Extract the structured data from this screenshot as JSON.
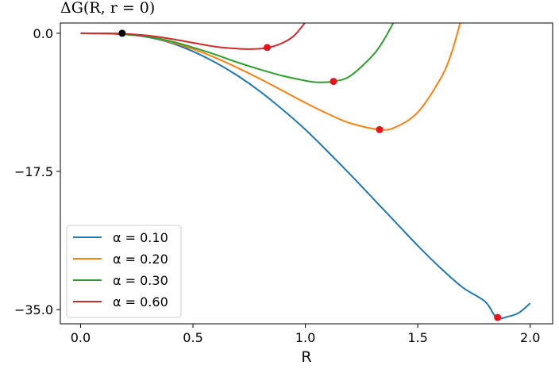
{
  "chart_data": {
    "type": "line",
    "title": "ΔG(R, r = 0)",
    "xlabel": "R",
    "ylabel": "",
    "xlim": [
      -0.09,
      2.1
    ],
    "ylim": [
      -36.8,
      1.3
    ],
    "xticks": [
      0.0,
      0.5,
      1.0,
      1.5,
      2.0
    ],
    "xtick_labels": [
      "0.0",
      "0.5",
      "1.0",
      "1.5",
      "2.0"
    ],
    "yticks": [
      0.0,
      -17.5,
      -35.0
    ],
    "ytick_labels": [
      "0.0",
      "−17.5",
      "−35.0"
    ],
    "grid": false,
    "legend_position": "lower-left",
    "series": [
      {
        "name": "α = 0.10",
        "color": "#1f77b4",
        "x": [
          0.0,
          0.1,
          0.2,
          0.3,
          0.4,
          0.5,
          0.6,
          0.7,
          0.8,
          0.9,
          1.0,
          1.1,
          1.2,
          1.3,
          1.4,
          1.5,
          1.6,
          1.7,
          1.8,
          1.85,
          1.9,
          1.95,
          2.0
        ],
        "y": [
          0.0,
          -0.02,
          -0.15,
          -0.5,
          -1.2,
          -2.3,
          -3.7,
          -5.4,
          -7.4,
          -9.7,
          -12.2,
          -15.0,
          -17.9,
          -20.9,
          -23.9,
          -26.9,
          -29.7,
          -32.2,
          -34.0,
          -36.0,
          -35.9,
          -35.4,
          -34.2
        ]
      },
      {
        "name": "α = 0.20",
        "color": "#ff7f0e",
        "x": [
          0.0,
          0.1,
          0.2,
          0.3,
          0.4,
          0.5,
          0.6,
          0.7,
          0.8,
          0.9,
          1.0,
          1.1,
          1.2,
          1.33,
          1.4,
          1.5,
          1.6,
          1.65,
          1.7
        ],
        "y": [
          0.0,
          -0.02,
          -0.15,
          -0.45,
          -1.1,
          -2.0,
          -3.1,
          -4.4,
          -5.8,
          -7.3,
          -8.8,
          -10.2,
          -11.4,
          -12.2,
          -11.9,
          -10.0,
          -5.8,
          -2.5,
          2.5
        ]
      },
      {
        "name": "α = 0.30",
        "color": "#2ca02c",
        "x": [
          0.0,
          0.1,
          0.2,
          0.3,
          0.4,
          0.5,
          0.6,
          0.7,
          0.8,
          0.9,
          1.0,
          1.05,
          1.125,
          1.2,
          1.3,
          1.35,
          1.4
        ],
        "y": [
          0.0,
          -0.02,
          -0.15,
          -0.45,
          -1.0,
          -1.8,
          -2.7,
          -3.7,
          -4.6,
          -5.4,
          -6.0,
          -6.2,
          -6.1,
          -5.4,
          -2.8,
          -0.8,
          1.8
        ]
      },
      {
        "name": "α = 0.60",
        "color": "#d62728",
        "x": [
          0.0,
          0.1,
          0.18,
          0.3,
          0.4,
          0.5,
          0.6,
          0.7,
          0.76,
          0.83,
          0.9,
          0.95,
          1.0
        ],
        "y": [
          0.0,
          -0.01,
          -0.05,
          -0.3,
          -0.7,
          -1.2,
          -1.7,
          -1.95,
          -2.0,
          -1.85,
          -1.2,
          -0.3,
          1.4
        ]
      }
    ],
    "markers": [
      {
        "x": 0.185,
        "y": 0.0,
        "color": "#000000"
      },
      {
        "x": 0.83,
        "y": -1.8,
        "color": "#e8141b"
      },
      {
        "x": 1.125,
        "y": -6.1,
        "color": "#e8141b"
      },
      {
        "x": 1.33,
        "y": -12.2,
        "color": "#e8141b"
      },
      {
        "x": 1.855,
        "y": -36.0,
        "color": "#e8141b"
      }
    ]
  }
}
